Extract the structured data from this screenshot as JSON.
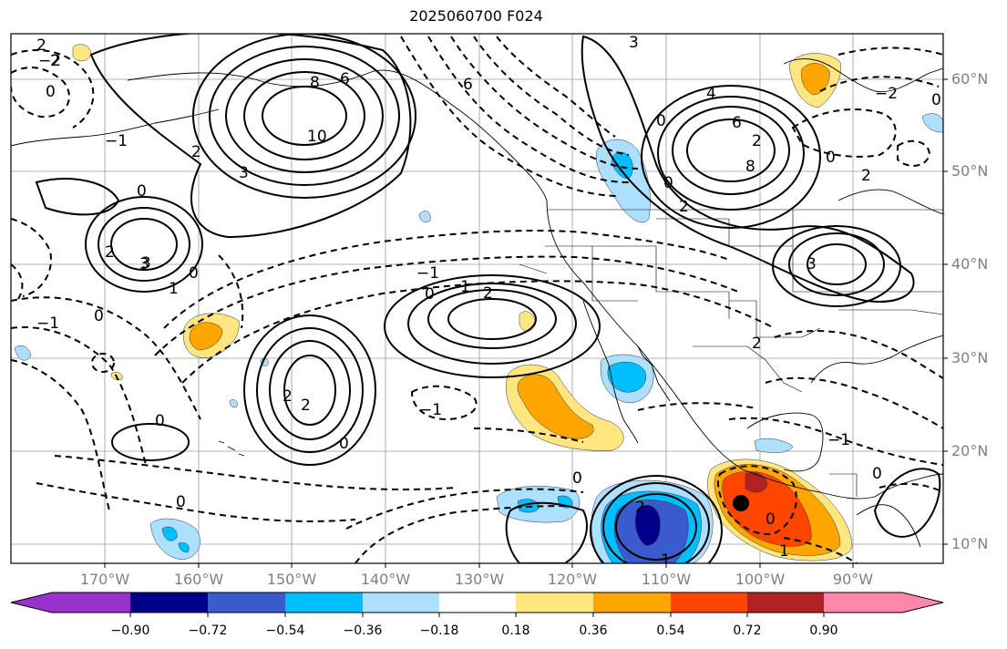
{
  "title": "2025060700 F024",
  "lat_labels": [
    "60°N",
    "50°N",
    "40°N",
    "30°N",
    "20°N",
    "10°N"
  ],
  "lon_labels": [
    "170°W",
    "160°W",
    "150°W",
    "140°W",
    "130°W",
    "120°W",
    "110°W",
    "100°W",
    "90°W"
  ],
  "colorbar": {
    "ticks": [
      "−0.90",
      "−0.72",
      "−0.54",
      "−0.36",
      "−0.18",
      "0.18",
      "0.36",
      "0.54",
      "0.72",
      "0.90"
    ],
    "colors": [
      "#9932CC",
      "#00008B",
      "#3A5BCD",
      "#00BFFF",
      "#ADDFFF",
      "#FFFFFF",
      "#FFE680",
      "#FFA500",
      "#FF4500",
      "#B22222",
      "#FF88AA"
    ]
  },
  "contour_labels": [
    "2",
    "2",
    "0",
    "−1",
    "0",
    "2",
    "3",
    "0",
    "1",
    "0",
    "2",
    "3",
    "8",
    "10",
    "6",
    "6",
    "−1",
    "−2",
    "0",
    "1",
    "2",
    "−1",
    "0",
    "2",
    "2",
    "0",
    "0",
    "−1",
    "0",
    "3",
    "4",
    "6",
    "8",
    "2",
    "0",
    "2",
    "0",
    "−2",
    "0",
    "3",
    "0",
    "2",
    "2",
    "1",
    "−1",
    "0",
    "2",
    "0",
    "1",
    "3"
  ],
  "marker": "storm-center"
}
